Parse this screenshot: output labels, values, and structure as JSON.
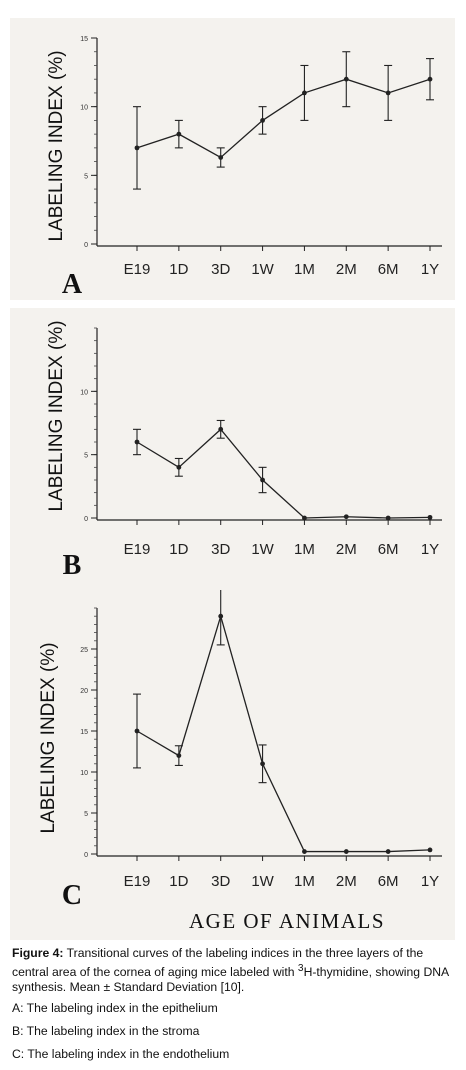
{
  "chart_data": [
    {
      "type": "line",
      "panel_letter": "A",
      "ylabel": "LABELING INDEX (%)",
      "categories": [
        "E19",
        "1D",
        "3D",
        "1W",
        "1M",
        "2M",
        "6M",
        "1Y"
      ],
      "values": [
        7,
        8,
        6.3,
        9,
        11,
        12,
        11,
        12
      ],
      "error": [
        3,
        1,
        0.7,
        1,
        2,
        2,
        2,
        1.5
      ],
      "yticks": [
        "0",
        "5",
        "10",
        "15"
      ],
      "ylim": [
        0,
        15
      ]
    },
    {
      "type": "line",
      "panel_letter": "B",
      "ylabel": "LABELING INDEX (%)",
      "categories": [
        "E19",
        "1D",
        "3D",
        "1W",
        "1M",
        "2M",
        "6M",
        "1Y"
      ],
      "values": [
        6,
        4,
        7,
        3,
        0,
        0.1,
        0,
        0.05
      ],
      "error": [
        1,
        0.7,
        0.7,
        1,
        0,
        0,
        0,
        0
      ],
      "yticks": [
        "0",
        "5",
        "10"
      ],
      "ylim": [
        0,
        15
      ]
    },
    {
      "type": "line",
      "panel_letter": "C",
      "ylabel": "LABELING INDEX (%)",
      "categories": [
        "E19",
        "1D",
        "3D",
        "1W",
        "1M",
        "2M",
        "6M",
        "1Y"
      ],
      "values": [
        15,
        12,
        29,
        11,
        0.3,
        0.3,
        0.3,
        0.5
      ],
      "error": [
        4.5,
        1.2,
        3.5,
        2.3,
        0,
        0,
        0,
        0
      ],
      "yticks": [
        "0",
        "5",
        "10",
        "15",
        "20",
        "25"
      ],
      "ylim": [
        0,
        30
      ]
    }
  ],
  "xlabel": "AGE OF ANIMALS",
  "caption": {
    "figure_label": "Figure 4:",
    "text_1": "Transitional curves of the labeling indices in the three layers of the central area of the cornea of aging mice labeled with ",
    "superscript": "3",
    "text_2": "H-thymidine, showing DNA synthesis. Mean ± Standard Deviation [10].",
    "line_a": "A: The labeling index in the epithelium",
    "line_b": "B: The labeling index in the stroma",
    "line_c": "C: The labeling index in the endothelium"
  }
}
